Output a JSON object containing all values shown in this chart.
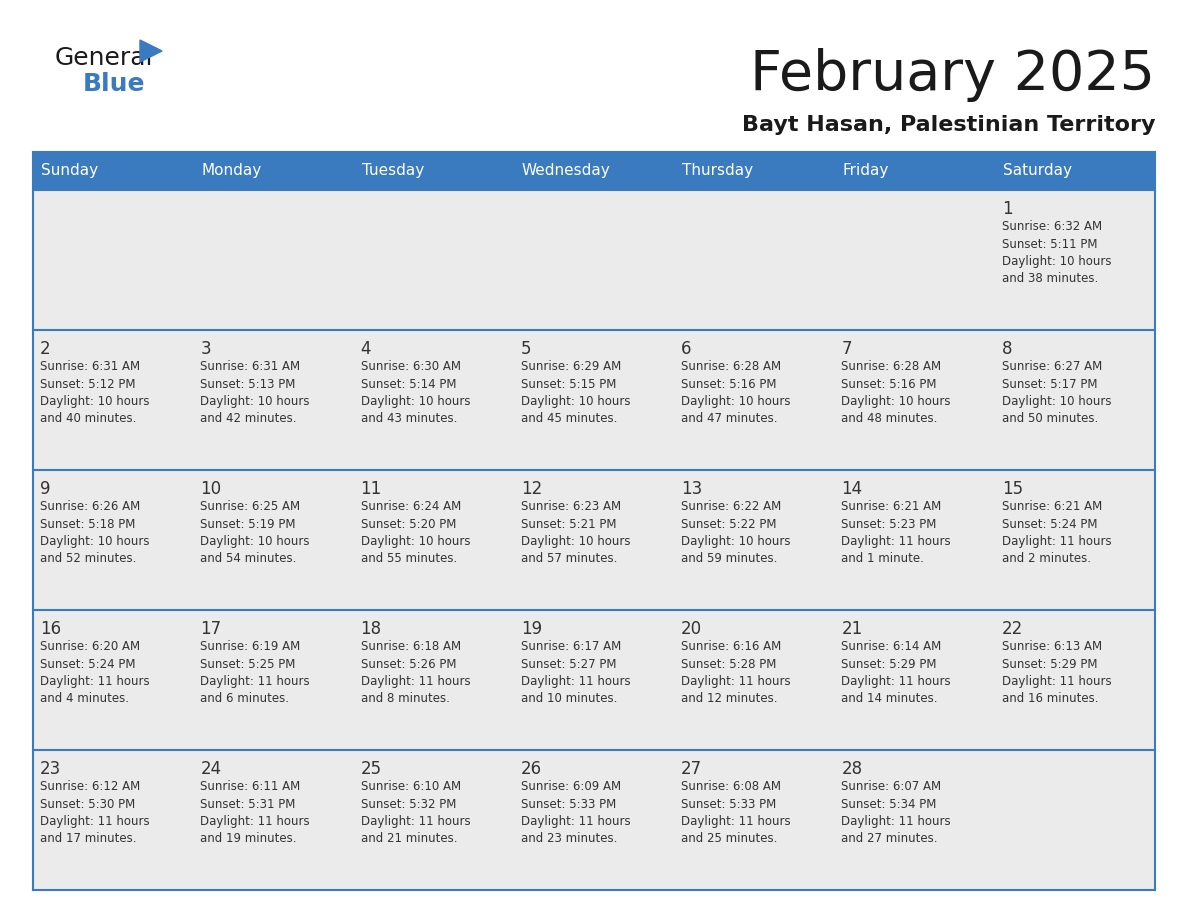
{
  "title": "February 2025",
  "subtitle": "Bayt Hasan, Palestinian Territory",
  "days_of_week": [
    "Sunday",
    "Monday",
    "Tuesday",
    "Wednesday",
    "Thursday",
    "Friday",
    "Saturday"
  ],
  "header_bg": "#3a7abf",
  "header_text": "#ffffff",
  "cell_bg": "#ebebeb",
  "separator_color": "#3a7abf",
  "text_color": "#333333",
  "border_color": "#3a7abf",
  "calendar": [
    [
      null,
      null,
      null,
      null,
      null,
      null,
      {
        "day": 1,
        "sunrise": "6:32 AM",
        "sunset": "5:11 PM",
        "daylight": "10 hours\nand 38 minutes."
      }
    ],
    [
      {
        "day": 2,
        "sunrise": "6:31 AM",
        "sunset": "5:12 PM",
        "daylight": "10 hours\nand 40 minutes."
      },
      {
        "day": 3,
        "sunrise": "6:31 AM",
        "sunset": "5:13 PM",
        "daylight": "10 hours\nand 42 minutes."
      },
      {
        "day": 4,
        "sunrise": "6:30 AM",
        "sunset": "5:14 PM",
        "daylight": "10 hours\nand 43 minutes."
      },
      {
        "day": 5,
        "sunrise": "6:29 AM",
        "sunset": "5:15 PM",
        "daylight": "10 hours\nand 45 minutes."
      },
      {
        "day": 6,
        "sunrise": "6:28 AM",
        "sunset": "5:16 PM",
        "daylight": "10 hours\nand 47 minutes."
      },
      {
        "day": 7,
        "sunrise": "6:28 AM",
        "sunset": "5:16 PM",
        "daylight": "10 hours\nand 48 minutes."
      },
      {
        "day": 8,
        "sunrise": "6:27 AM",
        "sunset": "5:17 PM",
        "daylight": "10 hours\nand 50 minutes."
      }
    ],
    [
      {
        "day": 9,
        "sunrise": "6:26 AM",
        "sunset": "5:18 PM",
        "daylight": "10 hours\nand 52 minutes."
      },
      {
        "day": 10,
        "sunrise": "6:25 AM",
        "sunset": "5:19 PM",
        "daylight": "10 hours\nand 54 minutes."
      },
      {
        "day": 11,
        "sunrise": "6:24 AM",
        "sunset": "5:20 PM",
        "daylight": "10 hours\nand 55 minutes."
      },
      {
        "day": 12,
        "sunrise": "6:23 AM",
        "sunset": "5:21 PM",
        "daylight": "10 hours\nand 57 minutes."
      },
      {
        "day": 13,
        "sunrise": "6:22 AM",
        "sunset": "5:22 PM",
        "daylight": "10 hours\nand 59 minutes."
      },
      {
        "day": 14,
        "sunrise": "6:21 AM",
        "sunset": "5:23 PM",
        "daylight": "11 hours\nand 1 minute."
      },
      {
        "day": 15,
        "sunrise": "6:21 AM",
        "sunset": "5:24 PM",
        "daylight": "11 hours\nand 2 minutes."
      }
    ],
    [
      {
        "day": 16,
        "sunrise": "6:20 AM",
        "sunset": "5:24 PM",
        "daylight": "11 hours\nand 4 minutes."
      },
      {
        "day": 17,
        "sunrise": "6:19 AM",
        "sunset": "5:25 PM",
        "daylight": "11 hours\nand 6 minutes."
      },
      {
        "day": 18,
        "sunrise": "6:18 AM",
        "sunset": "5:26 PM",
        "daylight": "11 hours\nand 8 minutes."
      },
      {
        "day": 19,
        "sunrise": "6:17 AM",
        "sunset": "5:27 PM",
        "daylight": "11 hours\nand 10 minutes."
      },
      {
        "day": 20,
        "sunrise": "6:16 AM",
        "sunset": "5:28 PM",
        "daylight": "11 hours\nand 12 minutes."
      },
      {
        "day": 21,
        "sunrise": "6:14 AM",
        "sunset": "5:29 PM",
        "daylight": "11 hours\nand 14 minutes."
      },
      {
        "day": 22,
        "sunrise": "6:13 AM",
        "sunset": "5:29 PM",
        "daylight": "11 hours\nand 16 minutes."
      }
    ],
    [
      {
        "day": 23,
        "sunrise": "6:12 AM",
        "sunset": "5:30 PM",
        "daylight": "11 hours\nand 17 minutes."
      },
      {
        "day": 24,
        "sunrise": "6:11 AM",
        "sunset": "5:31 PM",
        "daylight": "11 hours\nand 19 minutes."
      },
      {
        "day": 25,
        "sunrise": "6:10 AM",
        "sunset": "5:32 PM",
        "daylight": "11 hours\nand 21 minutes."
      },
      {
        "day": 26,
        "sunrise": "6:09 AM",
        "sunset": "5:33 PM",
        "daylight": "11 hours\nand 23 minutes."
      },
      {
        "day": 27,
        "sunrise": "6:08 AM",
        "sunset": "5:33 PM",
        "daylight": "11 hours\nand 25 minutes."
      },
      {
        "day": 28,
        "sunrise": "6:07 AM",
        "sunset": "5:34 PM",
        "daylight": "11 hours\nand 27 minutes."
      },
      null
    ]
  ]
}
